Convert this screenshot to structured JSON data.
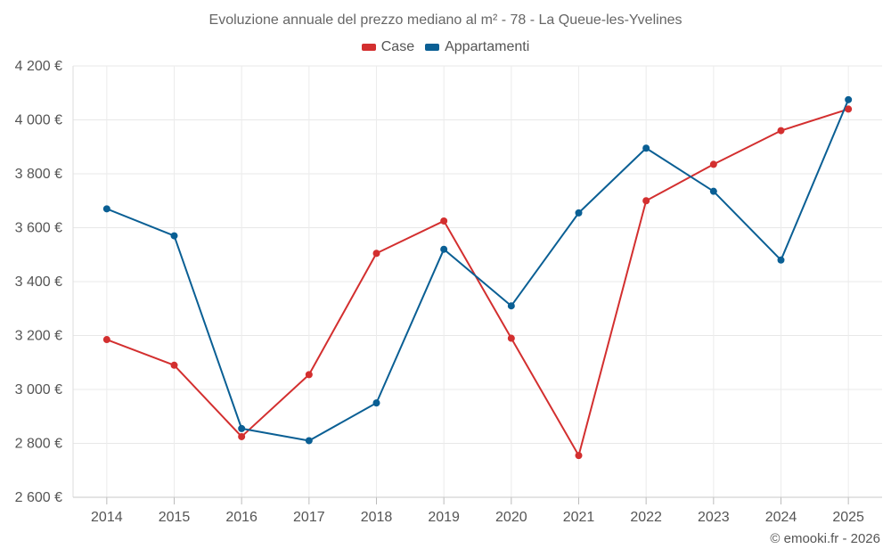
{
  "chart_data": {
    "type": "line",
    "title": "Evoluzione annuale del prezzo mediano al m² - 78 - La Queue-les-Yvelines",
    "categories": [
      "2014",
      "2015",
      "2016",
      "2017",
      "2018",
      "2019",
      "2020",
      "2021",
      "2022",
      "2023",
      "2024",
      "2025"
    ],
    "series": [
      {
        "name": "Case",
        "color": "#d32f2f",
        "values": [
          3185,
          3090,
          2825,
          3055,
          3505,
          3625,
          3190,
          2755,
          3700,
          3835,
          3960,
          4040
        ]
      },
      {
        "name": "Appartamenti",
        "color": "#0a5f94",
        "values": [
          3670,
          3570,
          2855,
          2810,
          2950,
          3520,
          3310,
          3655,
          3895,
          3735,
          3480,
          4075
        ]
      }
    ],
    "ylim": [
      2600,
      4200
    ],
    "yticks": [
      2600,
      2800,
      3000,
      3200,
      3400,
      3600,
      3800,
      4000,
      4200
    ],
    "ytick_labels": [
      "2 600 €",
      "2 800 €",
      "3 000 €",
      "3 200 €",
      "3 400 €",
      "3 600 €",
      "3 800 €",
      "4 000 €",
      "4 200 €"
    ],
    "xlabel": "",
    "ylabel": "",
    "legend": "top-center",
    "grid": true
  },
  "credit": "© emooki.fr - 2026"
}
